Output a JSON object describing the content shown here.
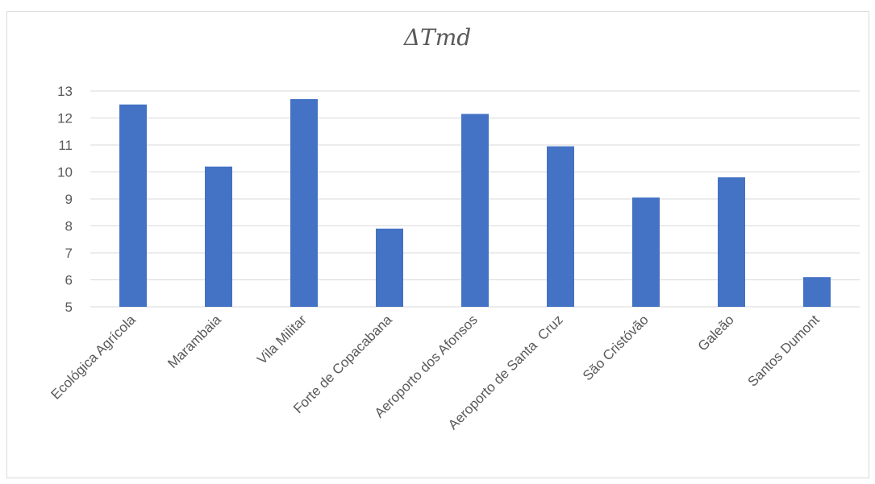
{
  "chart_data": {
    "type": "bar",
    "title": "ΔTmd",
    "xlabel": "",
    "ylabel": "",
    "categories": [
      "Ecológica Agrícola",
      "Marambaia",
      "Vila Militar",
      "Forte de Copacabana",
      "Aeroporto dos Afonsos",
      "Aeroporto de Santa  Cruz",
      "São Cristóvão",
      "Galeão",
      "Santos Dumont"
    ],
    "values": [
      12.5,
      10.2,
      12.7,
      7.9,
      12.15,
      10.95,
      9.05,
      9.8,
      6.1
    ],
    "ylim": [
      5,
      13
    ],
    "yticks": [
      "5",
      "6",
      "7",
      "8",
      "9",
      "10",
      "11",
      "12",
      "13"
    ],
    "grid": true,
    "bar_color": "#4472c4",
    "grid_color": "#d9d9d9"
  }
}
